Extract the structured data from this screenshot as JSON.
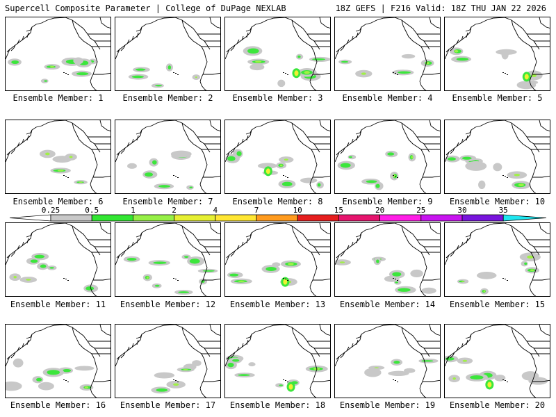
{
  "header": {
    "left": "Supercell Composite Parameter | College of DuPage NEXLAB",
    "right": "18Z GEFS | F216 Valid: 18Z THU JAN 22 2026"
  },
  "members": [
    {
      "label": "Ensemble Member: 1"
    },
    {
      "label": "Ensemble Member: 2"
    },
    {
      "label": "Ensemble Member: 3"
    },
    {
      "label": "Ensemble Member: 4"
    },
    {
      "label": "Ensemble Member: 5"
    },
    {
      "label": "Ensemble Member: 6"
    },
    {
      "label": "Ensemble Member: 7"
    },
    {
      "label": "Ensemble Member: 8"
    },
    {
      "label": "Ensemble Member: 9"
    },
    {
      "label": "Ensemble Member: 10"
    },
    {
      "label": "Ensemble Member: 11"
    },
    {
      "label": "Ensemble Member: 12"
    },
    {
      "label": "Ensemble Member: 13"
    },
    {
      "label": "Ensemble Member: 14"
    },
    {
      "label": "Ensemble Member: 15"
    },
    {
      "label": "Ensemble Member: 16"
    },
    {
      "label": "Ensemble Member: 17"
    },
    {
      "label": "Ensemble Member: 18"
    },
    {
      "label": "Ensemble Member: 19"
    },
    {
      "label": "Ensemble Member: 20"
    }
  ],
  "legend": {
    "ticks": [
      "0.25",
      "0.5",
      "1",
      "2",
      "4",
      "7",
      "10",
      "15",
      "20",
      "25",
      "30",
      "35"
    ],
    "colors": [
      "#c8c8c8",
      "#32e632",
      "#96f046",
      "#e6f032",
      "#ffe632",
      "#ff9b1e",
      "#e61e1e",
      "#e6146e",
      "#ff1ee6",
      "#c814f0",
      "#7814dc",
      "#a050dc",
      "#1ee6f0"
    ]
  },
  "colors": {
    "outline": "#000000",
    "gray": "#c8c8c8",
    "green": "#3ce63c",
    "lime": "#a0f046",
    "yellow": "#f0f032"
  }
}
